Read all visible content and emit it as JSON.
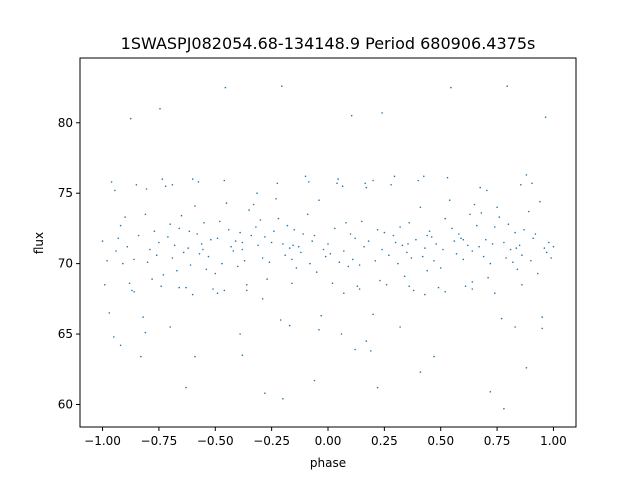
{
  "chart_data": {
    "type": "scatter",
    "title": "1SWASPJ082054.68-134148.9 Period 680906.4375s",
    "xlabel": "phase",
    "ylabel": "flux",
    "xlim": [
      -1.1,
      1.1
    ],
    "ylim": [
      58.4,
      84.6
    ],
    "xticks": [
      {
        "value": -1.0,
        "label": "−1.00"
      },
      {
        "value": -0.75,
        "label": "−0.75"
      },
      {
        "value": -0.5,
        "label": "−0.50"
      },
      {
        "value": -0.25,
        "label": "−0.25"
      },
      {
        "value": 0.0,
        "label": "0.00"
      },
      {
        "value": 0.25,
        "label": "0.25"
      },
      {
        "value": 0.5,
        "label": "0.50"
      },
      {
        "value": 0.75,
        "label": "0.75"
      },
      {
        "value": 1.0,
        "label": "1.00"
      }
    ],
    "yticks": [
      {
        "value": 60,
        "label": "60"
      },
      {
        "value": 65,
        "label": "65"
      },
      {
        "value": 70,
        "label": "70"
      },
      {
        "value": 75,
        "label": "75"
      },
      {
        "value": 80,
        "label": "80"
      }
    ],
    "grid": false,
    "marker_color": "#1f77b4",
    "series": [
      {
        "points": [
          [
            -1.0,
            71.6
          ],
          [
            -0.99,
            68.5
          ],
          [
            -0.98,
            70.2
          ],
          [
            -0.97,
            66.5
          ],
          [
            -0.96,
            75.8
          ],
          [
            -0.95,
            64.8
          ],
          [
            -0.94,
            70.9
          ],
          [
            -0.93,
            71.8
          ],
          [
            -0.92,
            72.7
          ],
          [
            -0.91,
            70.0
          ],
          [
            -0.9,
            73.3
          ],
          [
            -0.89,
            71.2
          ],
          [
            -0.88,
            68.6
          ],
          [
            -0.87,
            68.1
          ],
          [
            -0.86,
            70.3
          ],
          [
            -0.85,
            75.6
          ],
          [
            -0.84,
            72.0
          ],
          [
            -0.83,
            63.4
          ],
          [
            -0.82,
            66.2
          ],
          [
            -0.81,
            73.5
          ],
          [
            -0.8,
            70.1
          ],
          [
            -0.79,
            71.0
          ],
          [
            -0.78,
            68.9
          ],
          [
            -0.77,
            72.3
          ],
          [
            -0.76,
            70.6
          ],
          [
            -0.75,
            71.5
          ],
          [
            -0.74,
            68.4
          ],
          [
            -0.73,
            69.2
          ],
          [
            -0.72,
            75.5
          ],
          [
            -0.71,
            71.9
          ],
          [
            -0.7,
            72.8
          ],
          [
            -0.69,
            70.4
          ],
          [
            -0.68,
            71.3
          ],
          [
            -0.67,
            69.5
          ],
          [
            -0.66,
            72.5
          ],
          [
            -0.65,
            73.4
          ],
          [
            -0.64,
            70.8
          ],
          [
            -0.63,
            68.3
          ],
          [
            -0.62,
            71.1
          ],
          [
            -0.61,
            69.9
          ],
          [
            -0.6,
            76.0
          ],
          [
            -0.59,
            74.1
          ],
          [
            -0.58,
            72.1
          ],
          [
            -0.57,
            70.7
          ],
          [
            -0.56,
            71.4
          ],
          [
            -0.55,
            72.9
          ],
          [
            -0.54,
            69.6
          ],
          [
            -0.53,
            70.5
          ],
          [
            -0.52,
            71.7
          ],
          [
            -0.51,
            68.2
          ],
          [
            -0.5,
            69.3
          ],
          [
            -0.49,
            71.8
          ],
          [
            -0.48,
            73.0
          ],
          [
            -0.47,
            70.0
          ],
          [
            -0.46,
            75.9
          ],
          [
            -0.45,
            74.3
          ],
          [
            -0.44,
            72.4
          ],
          [
            -0.43,
            71.2
          ],
          [
            -0.42,
            70.9
          ],
          [
            -0.41,
            71.6
          ],
          [
            -0.4,
            69.8
          ],
          [
            -0.39,
            72.2
          ],
          [
            -0.38,
            71.0
          ],
          [
            -0.37,
            70.2
          ],
          [
            -0.36,
            68.5
          ],
          [
            -0.35,
            73.8
          ],
          [
            -0.34,
            72.0
          ],
          [
            -0.33,
            74.2
          ],
          [
            -0.32,
            72.6
          ],
          [
            -0.31,
            71.3
          ],
          [
            -0.3,
            73.1
          ],
          [
            -0.29,
            70.4
          ],
          [
            -0.28,
            71.9
          ],
          [
            -0.27,
            68.9
          ],
          [
            -0.26,
            70.1
          ],
          [
            -0.25,
            71.5
          ],
          [
            -0.24,
            72.3
          ],
          [
            -0.23,
            74.6
          ],
          [
            -0.22,
            73.2
          ],
          [
            -0.21,
            66.0
          ],
          [
            -0.2,
            71.4
          ],
          [
            -0.19,
            70.6
          ],
          [
            -0.18,
            72.7
          ],
          [
            -0.17,
            71.1
          ],
          [
            -0.16,
            70.3
          ],
          [
            -0.15,
            72.4
          ],
          [
            -0.14,
            69.7
          ],
          [
            -0.13,
            71.2
          ],
          [
            -0.12,
            70.8
          ],
          [
            -0.11,
            72.1
          ],
          [
            -0.1,
            76.2
          ],
          [
            -0.09,
            73.5
          ],
          [
            -0.08,
            70.0
          ],
          [
            -0.07,
            71.6
          ],
          [
            -0.06,
            72.0
          ],
          [
            -0.05,
            69.4
          ],
          [
            -0.04,
            74.5
          ],
          [
            -0.03,
            66.3
          ],
          [
            -0.02,
            71.0
          ],
          [
            -0.01,
            70.5
          ],
          [
            0.0,
            71.4
          ],
          [
            0.01,
            70.7
          ],
          [
            0.02,
            68.6
          ],
          [
            0.03,
            72.5
          ],
          [
            0.04,
            75.7
          ],
          [
            0.05,
            70.1
          ],
          [
            0.06,
            65.0
          ],
          [
            0.07,
            70.9
          ],
          [
            0.08,
            72.9
          ],
          [
            0.09,
            69.8
          ],
          [
            0.1,
            72.1
          ],
          [
            0.11,
            70.3
          ],
          [
            0.12,
            71.8
          ],
          [
            0.13,
            68.4
          ],
          [
            0.14,
            69.9
          ],
          [
            0.15,
            73.0
          ],
          [
            0.16,
            71.2
          ],
          [
            0.17,
            75.4
          ],
          [
            0.18,
            71.6
          ],
          [
            0.19,
            63.8
          ],
          [
            0.2,
            66.4
          ],
          [
            0.21,
            70.2
          ],
          [
            0.22,
            72.4
          ],
          [
            0.23,
            68.8
          ],
          [
            0.24,
            71.0
          ],
          [
            0.25,
            72.2
          ],
          [
            0.26,
            68.5
          ],
          [
            0.27,
            70.6
          ],
          [
            0.28,
            75.6
          ],
          [
            0.29,
            72.0
          ],
          [
            0.3,
            71.5
          ],
          [
            0.31,
            70.0
          ],
          [
            0.32,
            72.6
          ],
          [
            0.33,
            71.3
          ],
          [
            0.34,
            69.1
          ],
          [
            0.35,
            70.8
          ],
          [
            0.36,
            72.9
          ],
          [
            0.37,
            70.4
          ],
          [
            0.38,
            68.1
          ],
          [
            0.39,
            71.7
          ],
          [
            0.4,
            75.9
          ],
          [
            0.41,
            74.0
          ],
          [
            0.42,
            70.5
          ],
          [
            0.43,
            71.1
          ],
          [
            0.44,
            69.5
          ],
          [
            0.45,
            72.3
          ],
          [
            0.46,
            71.9
          ],
          [
            0.47,
            70.2
          ],
          [
            0.48,
            71.4
          ],
          [
            0.49,
            68.3
          ],
          [
            0.5,
            69.7
          ],
          [
            0.51,
            71.0
          ],
          [
            0.52,
            73.2
          ],
          [
            0.53,
            76.1
          ],
          [
            0.54,
            74.5
          ],
          [
            0.55,
            72.5
          ],
          [
            0.56,
            71.6
          ],
          [
            0.57,
            70.7
          ],
          [
            0.58,
            72.1
          ],
          [
            0.59,
            71.8
          ],
          [
            0.6,
            70.3
          ],
          [
            0.61,
            68.4
          ],
          [
            0.62,
            71.3
          ],
          [
            0.63,
            73.5
          ],
          [
            0.64,
            70.9
          ],
          [
            0.65,
            74.2
          ],
          [
            0.66,
            72.7
          ],
          [
            0.67,
            71.2
          ],
          [
            0.68,
            73.6
          ],
          [
            0.69,
            70.5
          ],
          [
            0.7,
            71.7
          ],
          [
            0.71,
            69.0
          ],
          [
            0.72,
            70.0
          ],
          [
            0.73,
            71.4
          ],
          [
            0.74,
            72.6
          ],
          [
            0.75,
            74.0
          ],
          [
            0.76,
            73.3
          ],
          [
            0.77,
            66.1
          ],
          [
            0.78,
            71.5
          ],
          [
            0.79,
            70.4
          ],
          [
            0.8,
            72.8
          ],
          [
            0.81,
            71.0
          ],
          [
            0.82,
            70.1
          ],
          [
            0.83,
            72.2
          ],
          [
            0.84,
            69.6
          ],
          [
            0.85,
            71.3
          ],
          [
            0.86,
            70.6
          ],
          [
            0.87,
            72.4
          ],
          [
            0.88,
            76.3
          ],
          [
            0.89,
            73.7
          ],
          [
            0.9,
            70.2
          ],
          [
            0.91,
            71.8
          ],
          [
            0.92,
            72.1
          ],
          [
            0.93,
            69.3
          ],
          [
            0.94,
            74.4
          ],
          [
            0.95,
            66.2
          ],
          [
            0.96,
            71.1
          ],
          [
            0.97,
            70.8
          ],
          [
            0.98,
            71.5
          ],
          [
            0.99,
            70.4
          ],
          [
            1.0,
            71.2
          ],
          [
            -0.945,
            75.2
          ],
          [
            -0.875,
            80.3
          ],
          [
            -0.805,
            75.3
          ],
          [
            -0.745,
            81.0
          ],
          [
            -0.69,
            75.6
          ],
          [
            -0.615,
            72.3
          ],
          [
            -0.555,
            71.0
          ],
          [
            -0.455,
            82.5
          ],
          [
            -0.38,
            71.5
          ],
          [
            -0.315,
            75.0
          ],
          [
            -0.205,
            82.6
          ],
          [
            -0.155,
            71.3
          ],
          [
            -0.085,
            75.8
          ],
          [
            0.045,
            76.0
          ],
          [
            0.105,
            80.5
          ],
          [
            0.165,
            75.7
          ],
          [
            0.24,
            80.7
          ],
          [
            0.295,
            76.2
          ],
          [
            0.355,
            71.4
          ],
          [
            0.44,
            72.0
          ],
          [
            0.545,
            82.5
          ],
          [
            0.6,
            71.7
          ],
          [
            0.705,
            75.2
          ],
          [
            0.795,
            82.6
          ],
          [
            0.835,
            71.1
          ],
          [
            0.905,
            75.7
          ],
          [
            0.965,
            80.4
          ],
          [
            -0.92,
            64.2
          ],
          [
            -0.81,
            65.1
          ],
          [
            -0.7,
            65.5
          ],
          [
            -0.6,
            67.8
          ],
          [
            -0.49,
            67.9
          ],
          [
            -0.36,
            68.1
          ],
          [
            -0.29,
            67.5
          ],
          [
            -0.17,
            65.6
          ],
          [
            -0.04,
            65.3
          ],
          [
            0.07,
            67.9
          ],
          [
            0.17,
            64.5
          ],
          [
            0.32,
            65.5
          ],
          [
            0.43,
            67.8
          ],
          [
            0.52,
            68.0
          ],
          [
            0.64,
            68.2
          ],
          [
            0.74,
            67.9
          ],
          [
            0.83,
            65.5
          ],
          [
            0.95,
            65.4
          ],
          [
            -0.59,
            63.4
          ],
          [
            -0.38,
            63.5
          ],
          [
            -0.28,
            60.8
          ],
          [
            -0.2,
            60.4
          ],
          [
            -0.06,
            61.7
          ],
          [
            0.22,
            61.2
          ],
          [
            0.47,
            63.4
          ],
          [
            0.72,
            60.9
          ],
          [
            0.78,
            59.7
          ],
          [
            -0.39,
            65.0
          ],
          [
            0.41,
            62.3
          ],
          [
            -0.63,
            61.2
          ],
          [
            0.12,
            63.9
          ],
          [
            0.88,
            62.6
          ],
          [
            -0.86,
            68.0
          ],
          [
            -0.66,
            68.3
          ],
          [
            -0.46,
            68.1
          ],
          [
            -0.16,
            68.6
          ],
          [
            0.14,
            68.2
          ],
          [
            0.36,
            68.4
          ],
          [
            0.64,
            68.7
          ],
          [
            0.86,
            68.5
          ],
          [
            -0.735,
            76.0
          ],
          [
            -0.575,
            75.8
          ],
          [
            -0.225,
            75.7
          ],
          [
            0.065,
            75.5
          ],
          [
            0.2,
            75.9
          ],
          [
            0.425,
            76.2
          ],
          [
            0.675,
            75.4
          ],
          [
            0.855,
            75.6
          ]
        ]
      }
    ]
  }
}
